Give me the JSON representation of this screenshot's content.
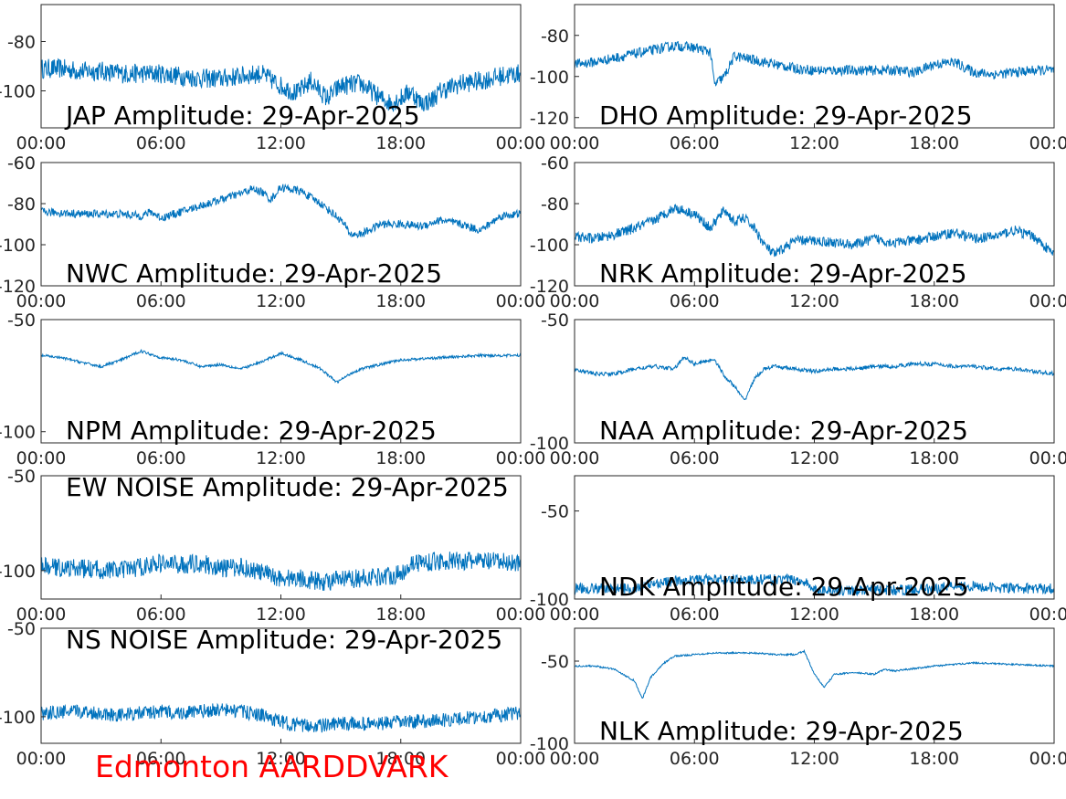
{
  "station_label": "Edmonton AARDDVARK",
  "colors": {
    "trace": "#0072bd",
    "axes": "#262626",
    "station_label": "#ff0000",
    "background": "#ffffff"
  },
  "chart_data": [
    {
      "type": "line",
      "title": "JAP Amplitude: 29-Apr-2025",
      "x_ticks": [
        "00:00",
        "06:00",
        "12:00",
        "18:00",
        "00:00"
      ],
      "y_ticks": [
        {
          "value": -80,
          "label": "-80"
        },
        {
          "value": -100,
          "label": "-100"
        }
      ],
      "ylim": [
        -115,
        -65
      ],
      "trace": {
        "x_hours": [
          0,
          1,
          2,
          3,
          4,
          5,
          6,
          7,
          8,
          9,
          10,
          11,
          12,
          12.8,
          13.5,
          14.3,
          15,
          16,
          17,
          17.5,
          18,
          18.5,
          19,
          19.5,
          20,
          21,
          22,
          23,
          24
        ],
        "y": [
          -91,
          -91,
          -92,
          -92,
          -93,
          -93,
          -93,
          -94,
          -95,
          -95,
          -94,
          -93,
          -98,
          -101,
          -96,
          -103,
          -98,
          -97,
          -103,
          -105,
          -103,
          -100,
          -105,
          -104,
          -100,
          -97,
          -96,
          -94,
          -93
        ],
        "noise": 4
      }
    },
    {
      "type": "line",
      "title": "DHO Amplitude: 29-Apr-2025",
      "x_ticks": [
        "00:00",
        "06:00",
        "12:00",
        "18:00",
        "00:00"
      ],
      "y_ticks": [
        {
          "value": -80,
          "label": "-80"
        },
        {
          "value": -100,
          "label": "-100"
        },
        {
          "value": -120,
          "label": "-120"
        }
      ],
      "ylim": [
        -125,
        -65
      ],
      "trace": {
        "x_hours": [
          0,
          1,
          2,
          3,
          4,
          5,
          6,
          6.8,
          7,
          7.5,
          8,
          9,
          10,
          11,
          12,
          13,
          14,
          15,
          16,
          17,
          17.3,
          18,
          19,
          20,
          21,
          22,
          23,
          24
        ],
        "y": [
          -94,
          -93,
          -91,
          -89,
          -87,
          -85,
          -86,
          -88,
          -104,
          -100,
          -90,
          -92,
          -94,
          -96,
          -97,
          -97,
          -97,
          -97,
          -97,
          -98,
          -97,
          -94,
          -93,
          -98,
          -99,
          -98,
          -97,
          -97
        ],
        "noise": 2.5
      }
    },
    {
      "type": "line",
      "title": "NWC Amplitude: 29-Apr-2025",
      "x_ticks": [
        "00:00",
        "06:00",
        "12:00",
        "18:00",
        "00:00"
      ],
      "y_ticks": [
        {
          "value": -60,
          "label": "-60"
        },
        {
          "value": -80,
          "label": "-80"
        },
        {
          "value": -100,
          "label": "-100"
        },
        {
          "value": -120,
          "label": "-120"
        }
      ],
      "ylim": [
        -120,
        -60
      ],
      "trace": {
        "x_hours": [
          0,
          2,
          4,
          5,
          5.5,
          6,
          7,
          8,
          9,
          10,
          10.5,
          11,
          11.5,
          12,
          13,
          14,
          15,
          15.5,
          16,
          17,
          18,
          19,
          20,
          21,
          22,
          23,
          24
        ],
        "y": [
          -84,
          -85,
          -85,
          -86,
          -84,
          -87,
          -84,
          -81,
          -78,
          -75,
          -73,
          -74,
          -78,
          -72,
          -74,
          -80,
          -88,
          -95,
          -95,
          -90,
          -90,
          -91,
          -88,
          -90,
          -93,
          -86,
          -85
        ],
        "noise": 2
      }
    },
    {
      "type": "line",
      "title": "NRK Amplitude: 29-Apr-2025",
      "x_ticks": [
        "00:00",
        "06:00",
        "12:00",
        "18:00",
        "00:00"
      ],
      "y_ticks": [
        {
          "value": -60,
          "label": "-60"
        },
        {
          "value": -80,
          "label": "-80"
        },
        {
          "value": -100,
          "label": "-100"
        },
        {
          "value": -120,
          "label": "-120"
        }
      ],
      "ylim": [
        -120,
        -60
      ],
      "trace": {
        "x_hours": [
          0,
          1,
          2,
          3,
          4,
          5,
          6,
          6.8,
          7.5,
          8,
          8.5,
          9,
          9.5,
          10,
          11,
          12,
          13,
          14,
          15,
          16,
          17,
          18,
          19,
          20,
          21,
          22,
          23,
          24
        ],
        "y": [
          -96,
          -97,
          -95,
          -92,
          -88,
          -82,
          -85,
          -92,
          -83,
          -89,
          -87,
          -92,
          -100,
          -105,
          -98,
          -98,
          -99,
          -100,
          -97,
          -99,
          -98,
          -96,
          -94,
          -97,
          -96,
          -93,
          -96,
          -105
        ],
        "noise": 2.5
      }
    },
    {
      "type": "line",
      "title": "NPM Amplitude: 29-Apr-2025",
      "x_ticks": [
        "00:00",
        "06:00",
        "12:00",
        "18:00",
        "00:00"
      ],
      "y_ticks": [
        {
          "value": -50,
          "label": "-50"
        },
        {
          "value": -100,
          "label": "-100"
        }
      ],
      "ylim": [
        -105,
        -50
      ],
      "trace": {
        "x_hours": [
          0,
          1,
          2,
          3,
          4,
          5,
          6,
          7,
          8,
          9,
          10,
          11,
          12,
          13,
          14,
          14.8,
          15.5,
          16,
          18,
          20,
          22,
          24
        ],
        "y": [
          -66,
          -67,
          -69,
          -71,
          -68,
          -64,
          -67,
          -68,
          -71,
          -70,
          -72,
          -69,
          -65,
          -68,
          -72,
          -78,
          -74,
          -72,
          -68,
          -67,
          -66,
          -66
        ],
        "noise": 0.6
      }
    },
    {
      "type": "line",
      "title": "NAA Amplitude: 29-Apr-2025",
      "x_ticks": [
        "00:00",
        "06:00",
        "12:00",
        "18:00",
        "00:00"
      ],
      "y_ticks": [
        {
          "value": -50,
          "label": "-50"
        },
        {
          "value": -100,
          "label": "-100"
        }
      ],
      "ylim": [
        -100,
        -50
      ],
      "trace": {
        "x_hours": [
          0,
          1,
          2,
          3,
          4,
          5,
          5.5,
          6,
          7,
          7.5,
          8,
          8.5,
          9,
          9.5,
          10,
          11,
          12,
          13,
          14,
          15,
          16,
          17,
          18,
          19,
          20,
          21,
          22,
          23,
          24
        ],
        "y": [
          -70,
          -72,
          -72,
          -70,
          -69,
          -70,
          -65,
          -68,
          -66,
          -73,
          -77,
          -83,
          -74,
          -70,
          -69,
          -70,
          -71,
          -70,
          -70,
          -69,
          -69,
          -68,
          -68,
          -69,
          -69,
          -70,
          -70,
          -71,
          -72
        ],
        "noise": 0.8
      }
    },
    {
      "type": "line",
      "title": "EW NOISE Amplitude: 29-Apr-2025",
      "x_ticks": [
        "00:00",
        "06:00",
        "12:00",
        "18:00",
        "00:00"
      ],
      "y_ticks": [
        {
          "value": -50,
          "label": "-50"
        },
        {
          "value": -100,
          "label": "-100"
        }
      ],
      "ylim": [
        -115,
        -50
      ],
      "trace": {
        "x_hours": [
          0,
          2,
          4,
          5,
          6,
          7,
          8,
          9,
          10,
          11,
          12,
          13,
          14,
          15,
          16,
          17,
          18,
          18.5,
          20,
          22,
          24
        ],
        "y": [
          -98,
          -99,
          -100,
          -98,
          -96,
          -97,
          -96,
          -99,
          -98,
          -101,
          -104,
          -104,
          -106,
          -105,
          -104,
          -103,
          -102,
          -96,
          -95,
          -95,
          -96
        ],
        "noise": 5
      }
    },
    {
      "type": "line",
      "title": "NDK Amplitude: 29-Apr-2025",
      "x_ticks": [
        "00:00",
        "06:00",
        "12:00",
        "18:00",
        "00:00"
      ],
      "y_ticks": [
        {
          "value": -50,
          "label": "-50"
        },
        {
          "value": -100,
          "label": "-100"
        }
      ],
      "ylim": [
        -100,
        -30
      ],
      "trace": {
        "x_hours": [
          0,
          2,
          3,
          4,
          5,
          6,
          8,
          10,
          11,
          11.5,
          12,
          14,
          16,
          18,
          19,
          20,
          22,
          24
        ],
        "y": [
          -94,
          -94,
          -94,
          -91,
          -90,
          -89,
          -89,
          -89,
          -89,
          -90,
          -95,
          -95,
          -95,
          -94,
          -92,
          -93,
          -94,
          -94
        ],
        "noise": 3
      }
    },
    {
      "type": "line",
      "title": "NS NOISE Amplitude: 29-Apr-2025",
      "x_ticks": [
        "00:00",
        "06:00",
        "12:00",
        "18:00",
        "00:00"
      ],
      "y_ticks": [
        {
          "value": -50,
          "label": "-50"
        },
        {
          "value": -100,
          "label": "-100"
        }
      ],
      "ylim": [
        -115,
        -50
      ],
      "trace": {
        "x_hours": [
          0,
          2,
          4,
          5,
          6,
          7,
          8,
          9,
          10,
          11,
          12,
          13,
          14,
          15,
          16,
          17,
          18,
          20,
          22,
          24
        ],
        "y": [
          -98,
          -97,
          -99,
          -98,
          -97,
          -98,
          -97,
          -96,
          -97,
          -99,
          -103,
          -105,
          -105,
          -104,
          -104,
          -104,
          -103,
          -102,
          -100,
          -98
        ],
        "noise": 4
      }
    },
    {
      "type": "line",
      "title": "NLK Amplitude: 29-Apr-2025",
      "x_ticks": [
        "00:00",
        "06:00",
        "12:00",
        "18:00",
        "00:00"
      ],
      "y_ticks": [
        {
          "value": -50,
          "label": "-50"
        },
        {
          "value": -100,
          "label": "-100"
        }
      ],
      "ylim": [
        -100,
        -30
      ],
      "trace": {
        "x_hours": [
          0,
          1,
          2,
          3,
          3.4,
          3.8,
          4.5,
          5,
          6,
          7,
          8,
          9,
          10,
          11,
          11.5,
          12,
          12.5,
          13,
          14,
          15,
          15.5,
          16,
          18,
          20,
          22,
          24
        ],
        "y": [
          -53,
          -53,
          -55,
          -62,
          -73,
          -60,
          -51,
          -47,
          -46,
          -45,
          -45,
          -45,
          -46,
          -46,
          -44,
          -58,
          -66,
          -58,
          -57,
          -58,
          -55,
          -56,
          -53,
          -51,
          -52,
          -53
        ],
        "noise": 0.5
      }
    }
  ]
}
